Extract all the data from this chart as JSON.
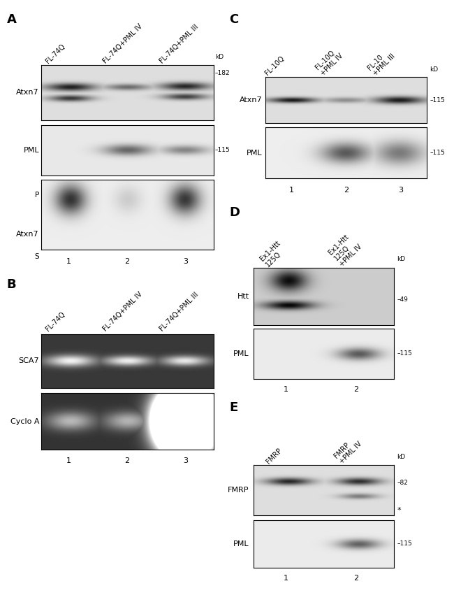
{
  "background_color": "#ffffff",
  "panel_A": {
    "label": "A",
    "col_labels": [
      "FL-74Q",
      "FL-74Q+PML IV",
      "FL-74Q+PML III"
    ],
    "blot1_label": "Atxn7",
    "blot2_label": "PML",
    "blot3_label": "Atxn7",
    "blot3_P": "P",
    "blot3_S": "S",
    "marker_kD": "kD",
    "marker1": "182",
    "marker2": "115",
    "lane_nums": [
      "1",
      "2",
      "3"
    ]
  },
  "panel_B": {
    "label": "B",
    "col_labels": [
      "FL-74Q",
      "FL-74Q+PML IV",
      "FL-74Q+PML III"
    ],
    "blot1_label": "SCA7",
    "blot2_label": "Cyclo A",
    "lane_nums": [
      "1",
      "2",
      "3"
    ]
  },
  "panel_C": {
    "label": "C",
    "col_labels": [
      "FL-10Q",
      "FL-10Q\n+PML IV",
      "FL-10\n+PML III"
    ],
    "blot1_label": "Atxn7",
    "blot2_label": "PML",
    "marker_kD": "kD",
    "marker1": "115",
    "marker2": "115",
    "lane_nums": [
      "1",
      "2",
      "3"
    ]
  },
  "panel_D": {
    "label": "D",
    "col_labels": [
      "Ex1-Htt\n125Q",
      "Ex1-Htt\n125Q\n+PML IV"
    ],
    "blot1_label": "Htt",
    "blot2_label": "PML",
    "marker_kD": "kD",
    "marker1": "49",
    "marker2": "115",
    "lane_nums": [
      "1",
      "2"
    ]
  },
  "panel_E": {
    "label": "E",
    "col_labels": [
      "FMRP",
      "FMRP\n+PML IV"
    ],
    "blot1_label": "FMRP",
    "blot2_label": "PML",
    "marker_kD": "kD",
    "marker1": "82",
    "marker2": "115",
    "star": "*",
    "lane_nums": [
      "1",
      "2"
    ]
  }
}
